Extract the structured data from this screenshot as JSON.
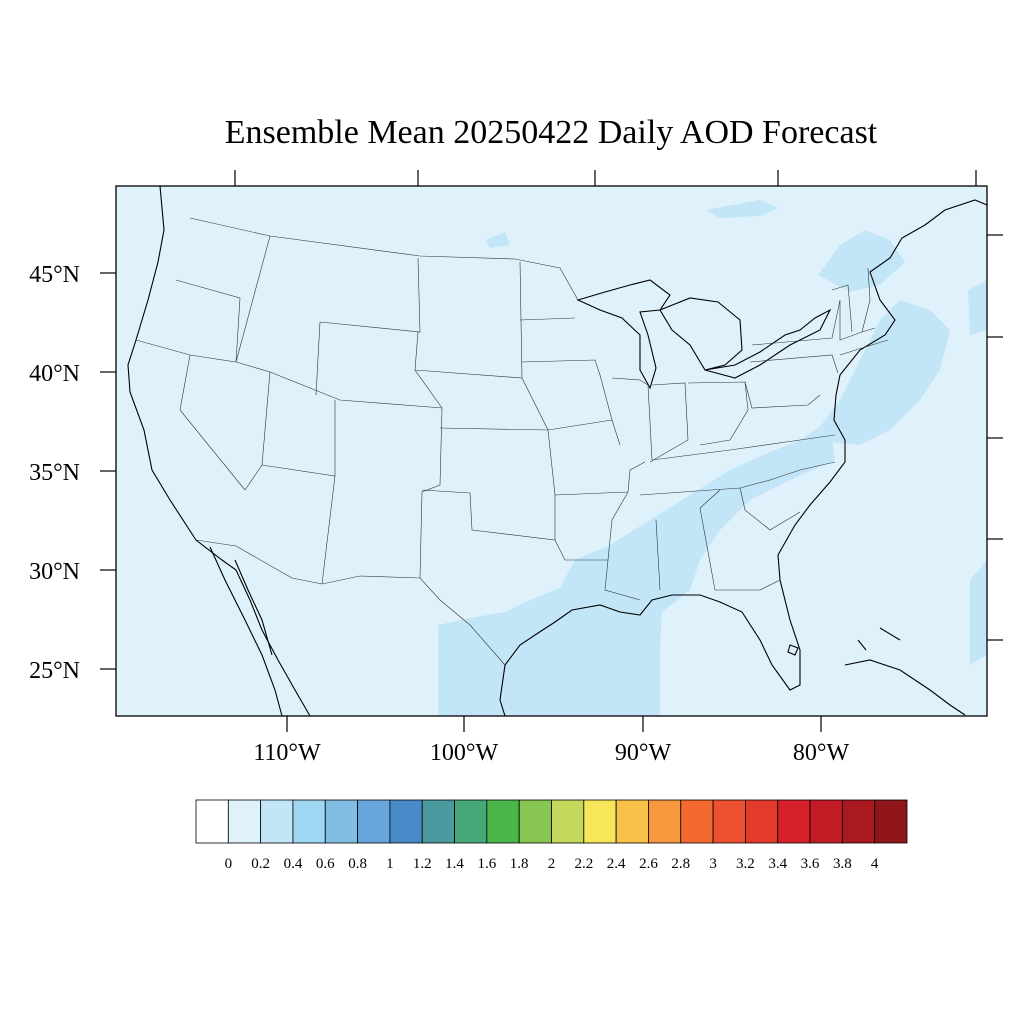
{
  "title": "Ensemble Mean 20250422 Daily AOD Forecast",
  "map": {
    "lat_labels": [
      "45°N",
      "40°N",
      "35°N",
      "30°N",
      "25°N"
    ],
    "lon_labels": [
      "110°W",
      "100°W",
      "90°W",
      "80°W"
    ],
    "background_color": "#dff2fb",
    "plume_color": "#c2e6f8",
    "border_color": "#000000"
  },
  "colorbar": {
    "labels": [
      "0",
      "0.2",
      "0.4",
      "0.6",
      "0.8",
      "1",
      "1.2",
      "1.4",
      "1.6",
      "1.8",
      "2",
      "2.2",
      "2.4",
      "2.6",
      "2.8",
      "3",
      "3.2",
      "3.4",
      "3.6",
      "3.8",
      "4"
    ],
    "colors": [
      "#ffffff",
      "#dff2fb",
      "#c2e6f8",
      "#9fd7f3",
      "#82bde4",
      "#66a6db",
      "#4a8ac9",
      "#4a9aa0",
      "#45a876",
      "#4ab74a",
      "#87c650",
      "#c4d95b",
      "#f8e65a",
      "#f9c04a",
      "#f7983e",
      "#f46a2e",
      "#ec5130",
      "#e23b2b",
      "#d52029",
      "#c11b26",
      "#a9191f",
      "#8f151b"
    ]
  }
}
